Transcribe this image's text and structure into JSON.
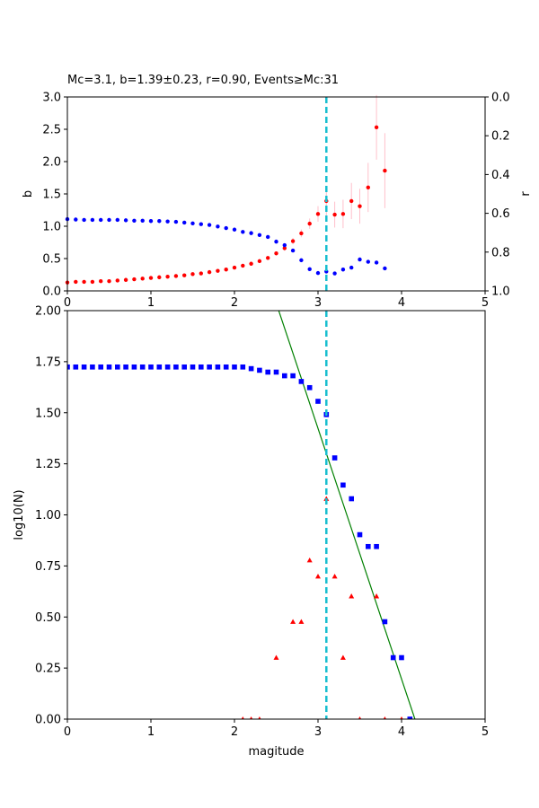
{
  "chart_data": [
    {
      "type": "scatter",
      "title": "Mc=3.1, b=1.39±0.23, r=0.90, Events≥Mc:31",
      "xlabel": "",
      "ylabel": "b",
      "ylabel_right": "r",
      "xlim": [
        0,
        5
      ],
      "ylim": [
        0,
        3.0
      ],
      "ylim_right": [
        1.0,
        0.0
      ],
      "right_axis_inverted": true,
      "x_ticks": [
        "0",
        "1",
        "2",
        "3",
        "4",
        "5"
      ],
      "y_ticks": [
        "0.0",
        "0.5",
        "1.0",
        "1.5",
        "2.0",
        "2.5",
        "3.0"
      ],
      "y_ticks_right": [
        "0.0",
        "0.2",
        "0.4",
        "0.6",
        "0.8",
        "1.0"
      ],
      "grid": false,
      "vline": {
        "x": 3.1,
        "color": "#17becf",
        "style": "dashed"
      },
      "series": [
        {
          "color": "#ff0000",
          "axis": "left",
          "marker": "circle",
          "x": [
            0.0,
            0.1,
            0.2,
            0.3,
            0.4,
            0.5,
            0.6,
            0.7,
            0.8,
            0.9,
            1.0,
            1.1,
            1.2,
            1.3,
            1.4,
            1.5,
            1.6,
            1.7,
            1.8,
            1.9,
            2.0,
            2.1,
            2.2,
            2.3,
            2.4,
            2.5,
            2.6,
            2.7,
            2.8,
            2.9,
            3.0,
            3.1,
            3.2,
            3.3,
            3.4,
            3.5,
            3.6,
            3.7,
            3.8
          ],
          "y": [
            0.13,
            0.14,
            0.14,
            0.14,
            0.15,
            0.15,
            0.16,
            0.17,
            0.18,
            0.19,
            0.2,
            0.21,
            0.22,
            0.23,
            0.24,
            0.26,
            0.27,
            0.29,
            0.31,
            0.33,
            0.36,
            0.39,
            0.42,
            0.46,
            0.51,
            0.58,
            0.66,
            0.77,
            0.89,
            1.04,
            1.19,
            1.39,
            1.18,
            1.19,
            1.39,
            1.31,
            1.6,
            2.53,
            1.86
          ],
          "err": [
            0.01,
            0.01,
            0.01,
            0.01,
            0.01,
            0.01,
            0.01,
            0.01,
            0.01,
            0.01,
            0.01,
            0.01,
            0.01,
            0.01,
            0.01,
            0.01,
            0.01,
            0.01,
            0.01,
            0.01,
            0.01,
            0.01,
            0.01,
            0.02,
            0.02,
            0.03,
            0.04,
            0.05,
            0.06,
            0.08,
            0.12,
            0.23,
            0.2,
            0.22,
            0.28,
            0.27,
            0.38,
            0.5,
            0.58
          ],
          "err_color": "#ffc0cb"
        },
        {
          "color": "#0000ff",
          "axis": "right",
          "marker": "circle",
          "x": [
            0.0,
            0.1,
            0.2,
            0.3,
            0.4,
            0.5,
            0.6,
            0.7,
            0.8,
            0.9,
            1.0,
            1.1,
            1.2,
            1.3,
            1.4,
            1.5,
            1.6,
            1.7,
            1.8,
            1.9,
            2.0,
            2.1,
            2.2,
            2.3,
            2.4,
            2.5,
            2.6,
            2.7,
            2.8,
            2.9,
            3.0,
            3.1,
            3.2,
            3.3,
            3.4,
            3.5,
            3.6,
            3.7,
            3.8
          ],
          "y": [
            0.63,
            0.632,
            0.634,
            0.634,
            0.634,
            0.634,
            0.634,
            0.636,
            0.638,
            0.638,
            0.64,
            0.64,
            0.642,
            0.644,
            0.648,
            0.652,
            0.656,
            0.66,
            0.668,
            0.676,
            0.684,
            0.696,
            0.702,
            0.712,
            0.722,
            0.746,
            0.764,
            0.792,
            0.842,
            0.888,
            0.908,
            0.9,
            0.91,
            0.89,
            0.88,
            0.838,
            0.85,
            0.854,
            0.884
          ]
        }
      ]
    },
    {
      "type": "scatter",
      "title": "",
      "xlabel": "magitude",
      "ylabel": "log10(N)",
      "xlim": [
        0,
        5
      ],
      "ylim": [
        0,
        2.0
      ],
      "x_ticks": [
        "0",
        "1",
        "2",
        "3",
        "4",
        "5"
      ],
      "y_ticks": [
        "0.00",
        "0.25",
        "0.50",
        "0.75",
        "1.00",
        "1.25",
        "1.50",
        "1.75",
        "2.00"
      ],
      "grid": false,
      "vline": {
        "x": 3.1,
        "color": "#17becf",
        "style": "dashed"
      },
      "fit_line": {
        "color": "#008000",
        "x": [
          2.53,
          4.16
        ],
        "y": [
          2.0,
          0.0
        ]
      },
      "series": [
        {
          "color": "#0000ff",
          "marker": "square",
          "x": [
            0.0,
            0.1,
            0.2,
            0.3,
            0.4,
            0.5,
            0.6,
            0.7,
            0.8,
            0.9,
            1.0,
            1.1,
            1.2,
            1.3,
            1.4,
            1.5,
            1.6,
            1.7,
            1.8,
            1.9,
            2.0,
            2.1,
            2.2,
            2.3,
            2.4,
            2.5,
            2.6,
            2.7,
            2.8,
            2.9,
            3.0,
            3.1,
            3.2,
            3.3,
            3.4,
            3.5,
            3.6,
            3.7,
            3.8,
            3.9,
            4.0,
            4.1
          ],
          "y": [
            1.724,
            1.724,
            1.724,
            1.724,
            1.724,
            1.724,
            1.724,
            1.724,
            1.724,
            1.724,
            1.724,
            1.724,
            1.724,
            1.724,
            1.724,
            1.724,
            1.724,
            1.724,
            1.724,
            1.724,
            1.724,
            1.724,
            1.716,
            1.708,
            1.699,
            1.699,
            1.681,
            1.681,
            1.653,
            1.623,
            1.556,
            1.491,
            1.279,
            1.146,
            1.079,
            0.903,
            0.845,
            0.845,
            0.477,
            0.301,
            0.301,
            0.0
          ]
        },
        {
          "color": "#ff0000",
          "marker": "triangle",
          "x": [
            2.1,
            2.2,
            2.3,
            2.5,
            2.7,
            2.8,
            2.9,
            3.0,
            3.1,
            3.2,
            3.3,
            3.4,
            3.5,
            3.7,
            3.8,
            4.0
          ],
          "y": [
            0.0,
            0.0,
            0.0,
            0.301,
            0.477,
            0.477,
            0.778,
            0.699,
            1.079,
            0.699,
            0.301,
            0.602,
            0.0,
            0.602,
            0.0,
            0.0
          ]
        }
      ]
    }
  ]
}
